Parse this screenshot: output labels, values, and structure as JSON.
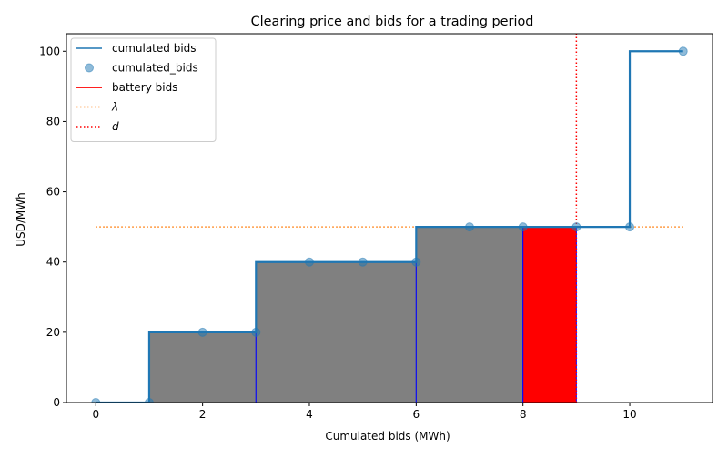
{
  "chart_data": {
    "type": "line",
    "title": "Clearing price and bids for a trading period",
    "xlabel": "Cumulated bids (MWh)",
    "ylabel": "USD/MWh",
    "xlim": [
      -0.55,
      11.55
    ],
    "ylim": [
      0,
      105
    ],
    "xticks": [
      0,
      2,
      4,
      6,
      8,
      10
    ],
    "yticks": [
      0,
      20,
      40,
      60,
      80,
      100
    ],
    "grid": false,
    "legend_position": "top-left",
    "series": [
      {
        "name": "cumulated bids",
        "kind": "step-line",
        "color": "#1f77b4",
        "x": [
          0,
          1,
          1,
          3,
          3,
          6,
          6,
          10,
          10,
          11
        ],
        "y": [
          0,
          0,
          20,
          20,
          40,
          40,
          50,
          50,
          100,
          100
        ]
      },
      {
        "name": "cumulated_bids",
        "kind": "markers",
        "color": "#1f77b4",
        "x": [
          0,
          1,
          2,
          3,
          4,
          5,
          6,
          7,
          8,
          9,
          10,
          11
        ],
        "y": [
          0,
          0,
          20,
          20,
          40,
          40,
          40,
          50,
          50,
          50,
          50,
          100
        ]
      },
      {
        "name": "battery bids",
        "kind": "bar-fill",
        "color": "#ff0000",
        "x_start": 8,
        "x_end": 9,
        "height": 50
      },
      {
        "name": "λ",
        "kind": "hline-dotted",
        "color": "#ff7f0e",
        "value": 50,
        "x_start": 0,
        "x_end": 11
      },
      {
        "name": "d",
        "kind": "vline-dotted",
        "color": "#ff0000",
        "value": 9
      }
    ],
    "accepted_bids": {
      "color": "#808080",
      "edge_color": "#0000ff",
      "bars": [
        {
          "x_start": 1,
          "x_end": 3,
          "height": 20
        },
        {
          "x_start": 3,
          "x_end": 6,
          "height": 40
        },
        {
          "x_start": 6,
          "x_end": 8,
          "height": 50
        }
      ]
    }
  }
}
